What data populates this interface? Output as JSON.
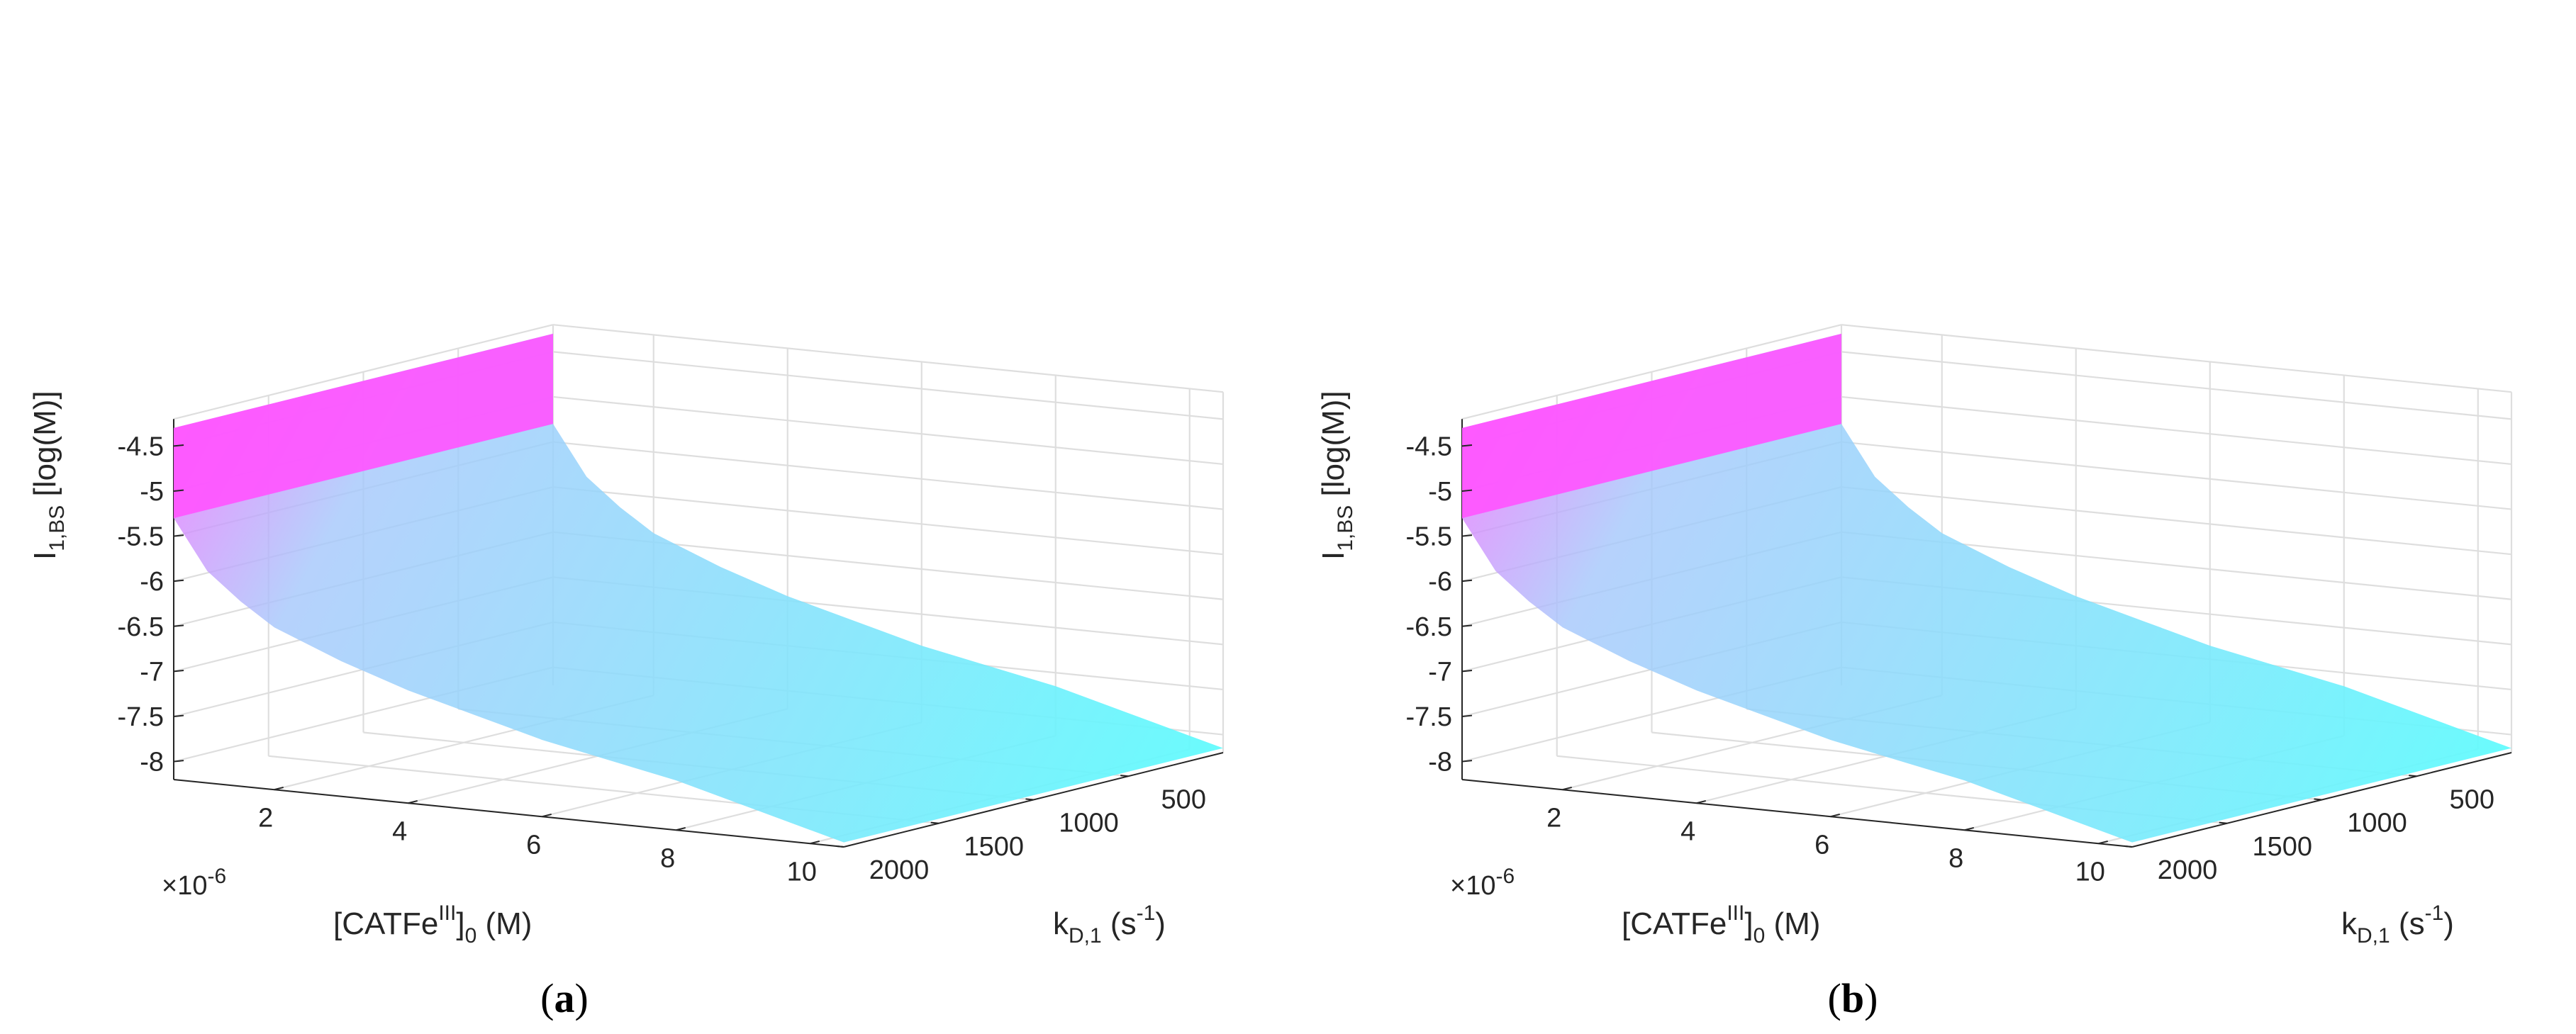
{
  "chart_data": [
    {
      "type": "surface3d",
      "caption": {
        "open": "(",
        "letter": "a",
        "close": ")"
      },
      "zlabel": {
        "main": "I",
        "sub": "1,BS",
        "rest": " [log(M)]"
      },
      "xlabel": {
        "main": "[CATFe",
        "sup": "III",
        "close": "]",
        "sub": "0",
        "rest": " (M)"
      },
      "ylabel": {
        "main": "k",
        "sub": "D,1",
        "rest": " (s",
        "sup": "-1",
        "close": ")"
      },
      "x_multiplier": {
        "prefix": "×10",
        "sup": "-6"
      },
      "zlim": [
        -8.2,
        -4.2
      ],
      "xlim": [
        0.5,
        10.5
      ],
      "ylim": [
        0,
        2000
      ],
      "z_ticks": [
        -4.5,
        -5,
        -5.5,
        -6,
        -6.5,
        -7,
        -7.5,
        -8
      ],
      "z_tick_labels": [
        "-4.5",
        "-5",
        "-5.5",
        "-6",
        "-6.5",
        "-7",
        "-7.5",
        "-8"
      ],
      "x_ticks": [
        2,
        4,
        6,
        8,
        10
      ],
      "x_tick_labels": [
        "2",
        "4",
        "6",
        "8",
        "10"
      ],
      "y_ticks": [
        500,
        1000,
        1500,
        2000
      ],
      "y_tick_labels": [
        "500",
        "1000",
        "1500",
        "2000"
      ],
      "surface_profile_x": [
        0.5,
        1,
        1.5,
        2,
        3,
        4,
        5,
        6,
        7,
        8,
        9,
        10,
        10.5
      ],
      "surface_profile_z": [
        -5.3,
        -5.85,
        -6.15,
        -6.4,
        -6.7,
        -6.95,
        -7.15,
        -7.35,
        -7.5,
        -7.65,
        -7.85,
        -8.05,
        -8.15
      ],
      "edge_top_z": -4.3,
      "edge_break_z": -5.3,
      "colormap": [
        "#5ffdfd",
        "#a6c8fb",
        "#ff55ff"
      ],
      "grid": true
    },
    {
      "type": "surface3d",
      "caption": {
        "open": "(",
        "letter": "b",
        "close": ")"
      },
      "zlabel": {
        "main": "I",
        "sub": "1,BS",
        "rest": " [log(M)]"
      },
      "xlabel": {
        "main": "[CATFe",
        "sup": "III",
        "close": "]",
        "sub": "0",
        "rest": " (M)"
      },
      "ylabel": {
        "main": "k",
        "sub": "D,1",
        "rest": " (s",
        "sup": "-1",
        "close": ")"
      },
      "x_multiplier": {
        "prefix": "×10",
        "sup": "-6"
      },
      "zlim": [
        -8.2,
        -4.2
      ],
      "xlim": [
        0.5,
        10.5
      ],
      "ylim": [
        0,
        2000
      ],
      "z_ticks": [
        -4.5,
        -5,
        -5.5,
        -6,
        -6.5,
        -7,
        -7.5,
        -8
      ],
      "z_tick_labels": [
        "-4.5",
        "-5",
        "-5.5",
        "-6",
        "-6.5",
        "-7",
        "-7.5",
        "-8"
      ],
      "x_ticks": [
        2,
        4,
        6,
        8,
        10
      ],
      "x_tick_labels": [
        "2",
        "4",
        "6",
        "8",
        "10"
      ],
      "y_ticks": [
        500,
        1000,
        1500,
        2000
      ],
      "y_tick_labels": [
        "500",
        "1000",
        "1500",
        "2000"
      ],
      "surface_profile_x": [
        0.5,
        1,
        1.5,
        2,
        3,
        4,
        5,
        6,
        7,
        8,
        9,
        10,
        10.5
      ],
      "surface_profile_z": [
        -5.3,
        -5.85,
        -6.15,
        -6.4,
        -6.7,
        -6.95,
        -7.15,
        -7.35,
        -7.5,
        -7.65,
        -7.85,
        -8.05,
        -8.15
      ],
      "edge_top_z": -4.3,
      "edge_break_z": -5.3,
      "colormap": [
        "#5ffdfd",
        "#a6c8fb",
        "#ff55ff"
      ],
      "grid": true
    }
  ]
}
